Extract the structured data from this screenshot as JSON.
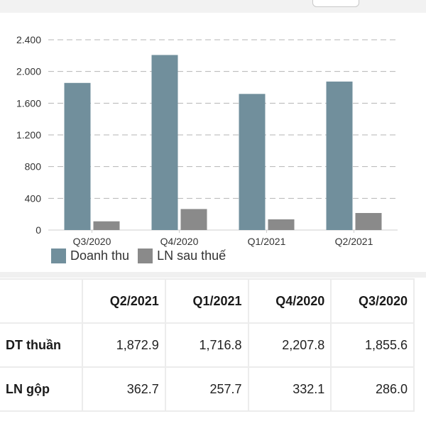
{
  "chart_data": {
    "type": "bar",
    "categories": [
      "Q3/2020",
      "Q4/2020",
      "Q1/2021",
      "Q2/2021"
    ],
    "series": [
      {
        "name": "Doanh thu",
        "values": [
          1855.6,
          2207.8,
          1716.8,
          1872.9
        ],
        "color": "#718f9c"
      },
      {
        "name": "LN sau thuế",
        "values": [
          110,
          265,
          135,
          215
        ],
        "color": "#8a8a8a"
      }
    ],
    "ylim": [
      0,
      2400
    ],
    "yticks": [
      0,
      400,
      800,
      1200,
      1600,
      2000,
      2400
    ],
    "ytick_labels": [
      "0",
      "400",
      "800",
      "1.200",
      "1.600",
      "2.000",
      "2.400"
    ],
    "grid": true,
    "legend_position": "bottom-left",
    "title": "",
    "xlabel": "",
    "ylabel": ""
  },
  "table": {
    "columns": [
      "Q2/2021",
      "Q1/2021",
      "Q4/2020",
      "Q3/2020"
    ],
    "rows": [
      {
        "label": "DT thuần",
        "values": [
          "1,872.9",
          "1,716.8",
          "2,207.8",
          "1,855.6"
        ]
      },
      {
        "label": "LN gộp",
        "values": [
          "362.7",
          "257.7",
          "332.1",
          "286.0"
        ]
      }
    ]
  }
}
